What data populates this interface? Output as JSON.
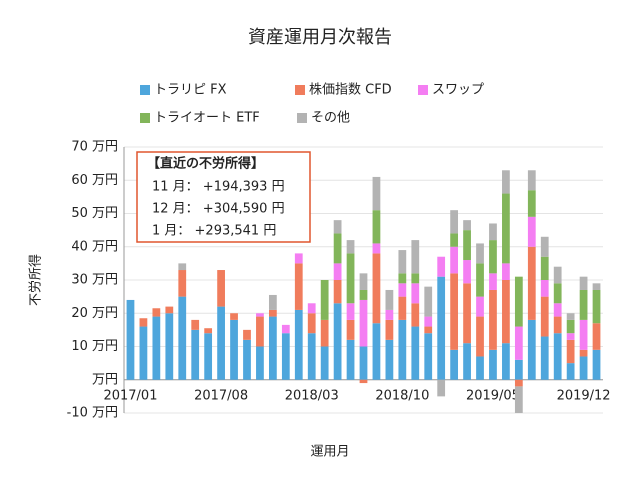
{
  "chart_data": {
    "type": "bar",
    "stacked": true,
    "title": "資産運用月次報告",
    "x_label": "運用月",
    "y_label": "不労所得",
    "categories": [
      "2017/01",
      null,
      null,
      null,
      null,
      null,
      null,
      "2017/08",
      null,
      null,
      null,
      null,
      null,
      null,
      "2018/03",
      null,
      null,
      null,
      null,
      null,
      null,
      "2018/10",
      null,
      null,
      null,
      null,
      null,
      null,
      "2019/05",
      null,
      null,
      null,
      null,
      null,
      null,
      "2019/12",
      null
    ],
    "series": [
      {
        "name": "トラリピ FX",
        "color": "#4ea6dc",
        "values": [
          24,
          16,
          19,
          20,
          25,
          15,
          14,
          22,
          18,
          12,
          10,
          19,
          14,
          21,
          14,
          10,
          23,
          12,
          10,
          17,
          12,
          18,
          16,
          14,
          31,
          9,
          11,
          7,
          9,
          11,
          6,
          18,
          13,
          14,
          5,
          7,
          9
        ]
      },
      {
        "name": "株価指数 CFD",
        "color": "#f07c5c",
        "values": [
          0,
          2.5,
          2.5,
          2,
          8,
          3,
          1.5,
          11,
          2,
          3,
          9,
          2,
          0,
          14,
          6,
          8,
          7,
          6,
          -1,
          21,
          6,
          7,
          7,
          2,
          0,
          23,
          18,
          12,
          18,
          19,
          -2,
          22,
          12,
          5,
          7,
          2,
          8
        ]
      },
      {
        "name": "スワップ",
        "color": "#f47ef2",
        "values": [
          0,
          0,
          0,
          0,
          0,
          0,
          0,
          0,
          0,
          0,
          1,
          0,
          2.5,
          3,
          3,
          0,
          5,
          5,
          14,
          3,
          3,
          4,
          6,
          3,
          6,
          8,
          7,
          6,
          5,
          5,
          10,
          9,
          5,
          4,
          2,
          9,
          0
        ]
      },
      {
        "name": "トライオート ETF",
        "color": "#82b55a",
        "values": [
          0,
          0,
          0,
          0,
          0,
          0,
          0,
          0,
          0,
          0,
          0,
          0,
          0,
          0,
          0,
          12,
          9,
          15,
          3,
          10,
          0,
          3,
          3,
          0,
          0,
          4,
          9,
          10,
          10,
          21,
          15,
          8,
          7,
          6,
          4,
          9,
          10
        ]
      },
      {
        "name": "その他",
        "color": "#b3b3b3",
        "values": [
          0,
          0,
          0,
          0,
          2,
          0,
          0,
          0,
          0,
          0,
          0,
          4.5,
          0,
          0,
          0,
          0,
          4,
          4,
          5,
          10,
          6,
          7,
          10,
          9,
          -5,
          7,
          3,
          6,
          5,
          7,
          -8,
          6,
          6,
          5,
          2,
          4,
          2
        ]
      }
    ],
    "ylim": [
      -10,
      70
    ],
    "yticks": [
      {
        "value": -10,
        "label": "-10 万円"
      },
      {
        "value": 0,
        "label": "万円"
      },
      {
        "value": 10,
        "label": "10 万円"
      },
      {
        "value": 20,
        "label": "20 万円"
      },
      {
        "value": 30,
        "label": "30 万円"
      },
      {
        "value": 40,
        "label": "40 万円"
      },
      {
        "value": 50,
        "label": "50 万円"
      },
      {
        "value": 60,
        "label": "60 万円"
      },
      {
        "value": 70,
        "label": "70 万円"
      }
    ],
    "grid": true,
    "annotation": {
      "title": "【直近の不労所得】",
      "lines": [
        "11 月： +194,393 円",
        "12 月： +304,590 円",
        "1 月： +293,541 円"
      ]
    }
  }
}
